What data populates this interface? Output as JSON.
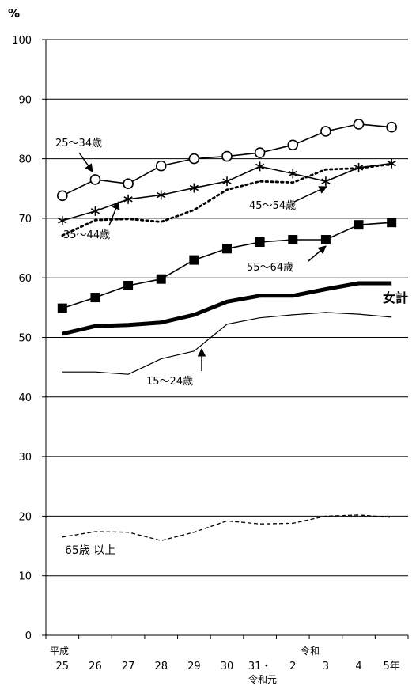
{
  "chart_data": {
    "type": "line",
    "y_unit": "%",
    "ylim": [
      0,
      100
    ],
    "y_ticks": [
      "0",
      "10",
      "20",
      "30",
      "40",
      "50",
      "60",
      "70",
      "80",
      "90",
      "100"
    ],
    "x_era_heisei": "平成",
    "x_era_reiwa": "令和",
    "x_reiwa_gannen": "令和元",
    "categories": [
      "25",
      "26",
      "27",
      "28",
      "29",
      "30",
      "31・",
      "2",
      "3",
      "4",
      "5年"
    ],
    "grid": "horizontal",
    "series": [
      {
        "name": "25～34歳",
        "marker": "circle",
        "values": [
          73.8,
          76.5,
          75.8,
          78.8,
          80.0,
          80.4,
          81.0,
          82.3,
          84.6,
          85.8,
          85.3
        ]
      },
      {
        "name": "45～54歳",
        "marker": "asterisk",
        "values": [
          69.6,
          71.2,
          73.2,
          73.9,
          75.1,
          76.2,
          78.7,
          77.5,
          76.2,
          78.5,
          79.2
        ]
      },
      {
        "name": "35～44歳",
        "marker": "none",
        "style": "dotted",
        "values": [
          67.1,
          69.7,
          69.9,
          69.4,
          71.4,
          74.8,
          76.2,
          76.0,
          78.2,
          78.4,
          79.1
        ]
      },
      {
        "name": "55～64歳",
        "marker": "square",
        "values": [
          54.9,
          56.7,
          58.7,
          59.8,
          63.0,
          64.9,
          66.0,
          66.4,
          66.4,
          68.9,
          69.3
        ]
      },
      {
        "name": "女計",
        "marker": "none",
        "style": "bold",
        "values": [
          50.6,
          51.9,
          52.1,
          52.5,
          53.8,
          56.0,
          57.0,
          57.0,
          58.1,
          59.1,
          59.1
        ]
      },
      {
        "name": "15～24歳",
        "marker": "none",
        "style": "thin",
        "values": [
          44.2,
          44.2,
          43.8,
          46.4,
          47.7,
          52.2,
          53.3,
          53.8,
          54.2,
          53.9,
          53.4
        ]
      },
      {
        "name": "65歳以上",
        "marker": "none",
        "style": "dashed",
        "values": [
          16.5,
          17.4,
          17.3,
          15.9,
          17.3,
          19.2,
          18.7,
          18.8,
          20.0,
          20.2,
          19.8
        ]
      }
    ],
    "annotations": {
      "label_25_34": "25～34歳",
      "label_35_44": "35～44歳",
      "label_45_54": "45～54歳",
      "label_55_64": "55～64歳",
      "label_15_24": "15～24歳",
      "label_total": "女計",
      "label_65": "65歳 以上"
    }
  }
}
